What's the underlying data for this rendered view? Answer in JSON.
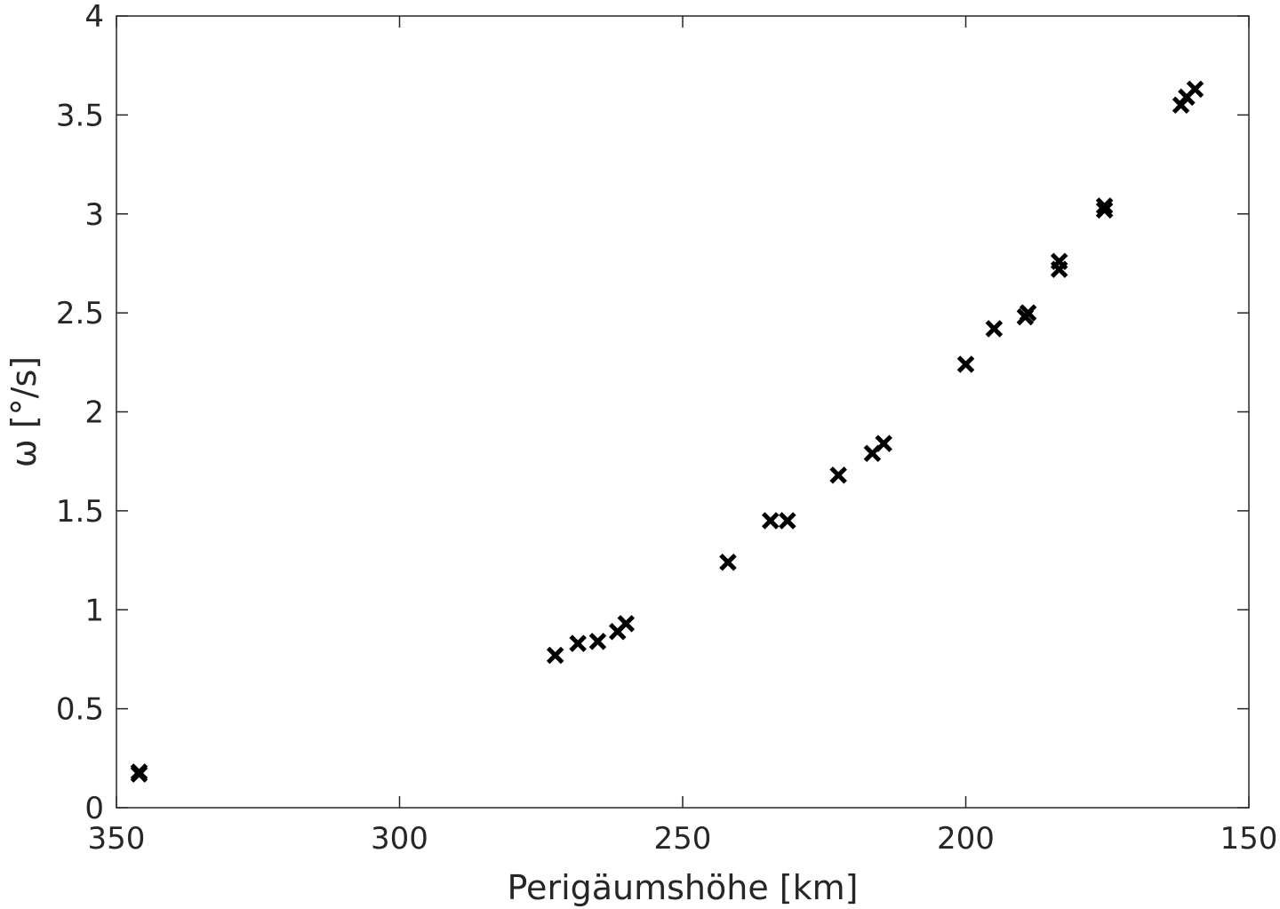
{
  "chart_data": {
    "type": "scatter",
    "title": "",
    "xlabel": "Perigäumshöhe [km]",
    "ylabel": "ω [°/s]",
    "xlim": [
      350,
      150
    ],
    "ylim": [
      0,
      4
    ],
    "x_reversed": true,
    "x_ticks": [
      350,
      300,
      250,
      200,
      150
    ],
    "x_tick_labels": [
      "350",
      "300",
      "250",
      "200",
      "150"
    ],
    "y_ticks": [
      0,
      0.5,
      1,
      1.5,
      2,
      2.5,
      3,
      3.5,
      4
    ],
    "y_tick_labels": [
      "0",
      "0.5",
      "1",
      "1.5",
      "2",
      "2.5",
      "3",
      "3.5",
      "4"
    ],
    "grid": false,
    "marker": "x",
    "marker_color": "#000000",
    "series": [
      {
        "points": [
          {
            "x": 346,
            "y": 0.18
          },
          {
            "x": 346,
            "y": 0.17
          },
          {
            "x": 272.5,
            "y": 0.77
          },
          {
            "x": 268.5,
            "y": 0.83
          },
          {
            "x": 265,
            "y": 0.84
          },
          {
            "x": 261.5,
            "y": 0.89
          },
          {
            "x": 260,
            "y": 0.93
          },
          {
            "x": 242,
            "y": 1.24
          },
          {
            "x": 234.5,
            "y": 1.45
          },
          {
            "x": 231.5,
            "y": 1.45
          },
          {
            "x": 222.5,
            "y": 1.68
          },
          {
            "x": 216.5,
            "y": 1.79
          },
          {
            "x": 214.5,
            "y": 1.84
          },
          {
            "x": 200,
            "y": 2.24
          },
          {
            "x": 195,
            "y": 2.42
          },
          {
            "x": 189.5,
            "y": 2.48
          },
          {
            "x": 189,
            "y": 2.5
          },
          {
            "x": 183.5,
            "y": 2.72
          },
          {
            "x": 183.5,
            "y": 2.76
          },
          {
            "x": 175.5,
            "y": 3.02
          },
          {
            "x": 175.5,
            "y": 3.04
          },
          {
            "x": 162,
            "y": 3.55
          },
          {
            "x": 161,
            "y": 3.59
          },
          {
            "x": 159.5,
            "y": 3.63
          }
        ]
      }
    ]
  }
}
